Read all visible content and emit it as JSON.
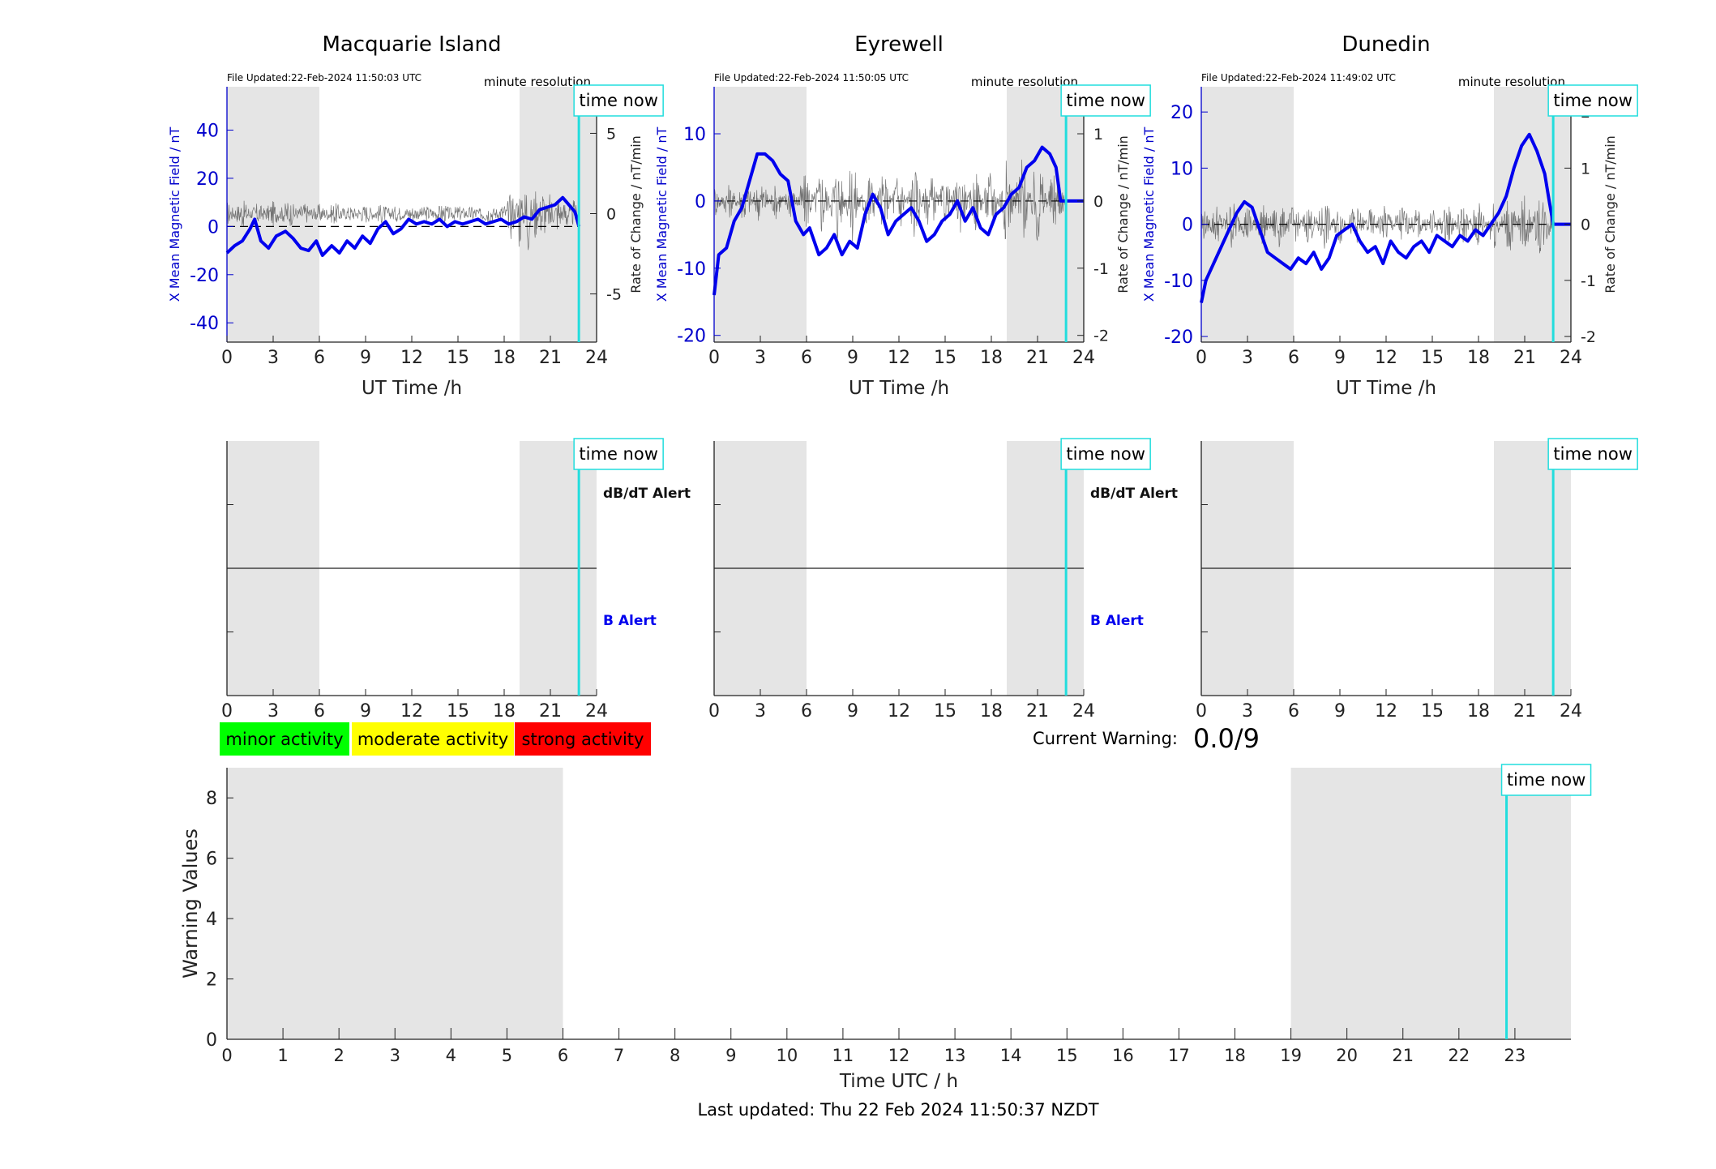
{
  "page": {
    "current_warning_label": "Current Warning:",
    "current_warning_value": "0.0/9",
    "last_updated": "Last updated: Thu 22 Feb 2024 11:50:37 NZDT",
    "time_now_label": "time now",
    "minute_resolution": "minute resolution",
    "legend": [
      {
        "label": "minor activity",
        "color": "#00ff00"
      },
      {
        "label": "moderate activity",
        "color": "#ffff00"
      },
      {
        "label": "strong activity",
        "color": "#ff0000"
      }
    ],
    "colors": {
      "field": "#0000ee",
      "rate": "#555555",
      "time_now": "#22dddd",
      "night": "#e5e5e5",
      "b_alert": "#0000ee"
    }
  },
  "chart_data": [
    {
      "type": "line",
      "title": "Macquarie Island",
      "file_updated": "File Updated:22-Feb-2024 11:50:03 UTC",
      "xlabel": "UT Time /h",
      "ylabel": "X Mean Magnetic Field / nT",
      "y2label": "Rate of Change / nT/min",
      "xlim": [
        0,
        24
      ],
      "ylim": [
        -48,
        58
      ],
      "y2lim": [
        -8,
        7.9
      ],
      "xticks": [
        "0",
        "3",
        "6",
        "9",
        "12",
        "15",
        "18",
        "21",
        "24"
      ],
      "yticks": [
        "-40",
        "-20",
        "0",
        "20",
        "40"
      ],
      "y2ticks": [
        "-5",
        "0",
        "5"
      ],
      "night_bands": [
        [
          0,
          6
        ],
        [
          19,
          24
        ]
      ],
      "time_now": 22.85,
      "series": [
        {
          "role": "field",
          "x": [
            0,
            0.5,
            1,
            1.5,
            1.8,
            2.2,
            2.7,
            3.2,
            3.8,
            4.3,
            4.8,
            5.3,
            5.8,
            6.2,
            6.8,
            7.3,
            7.8,
            8.3,
            8.8,
            9.3,
            9.8,
            10.3,
            10.8,
            11.3,
            11.8,
            12.3,
            12.8,
            13.3,
            13.8,
            14.3,
            14.8,
            15.3,
            15.8,
            16.3,
            16.8,
            17.3,
            17.8,
            18.3,
            18.8,
            19.3,
            19.8,
            20.3,
            20.8,
            21.3,
            21.8,
            22.2,
            22.6,
            22.85
          ],
          "y": [
            -11,
            -8,
            -6,
            -1,
            3,
            -6,
            -9,
            -4,
            -2,
            -5,
            -9,
            -10,
            -6,
            -12,
            -8,
            -11,
            -6,
            -9,
            -4,
            -7,
            -1,
            2,
            -3,
            -1,
            3,
            1,
            2,
            1,
            3,
            0,
            2,
            1,
            2,
            3,
            1,
            2,
            3,
            1,
            2,
            4,
            3,
            7,
            8,
            9,
            12,
            9,
            6,
            0
          ]
        },
        {
          "role": "rate",
          "x": [
            0,
            1,
            2,
            3,
            4,
            5,
            6,
            7,
            8,
            9,
            10,
            11,
            12,
            13,
            14,
            15,
            16,
            17,
            18,
            18.5,
            19,
            19.5,
            20,
            20.5,
            21,
            21.5,
            22,
            22.5,
            22.85
          ],
          "y": [
            0.5,
            -0.6,
            0.4,
            -0.5,
            0.6,
            -0.4,
            0.3,
            -0.4,
            0.2,
            -0.3,
            0.3,
            -0.2,
            0.2,
            -0.2,
            0.3,
            -0.2,
            0.2,
            -0.3,
            0.4,
            -1.5,
            2.2,
            -2.8,
            1.6,
            -1.8,
            1.2,
            -1.1,
            0.9,
            -0.6,
            0
          ]
        }
      ]
    },
    {
      "type": "line",
      "title": "Eyrewell",
      "file_updated": "File Updated:22-Feb-2024 11:50:05 UTC",
      "xlabel": "UT Time /h",
      "ylabel": "X Mean Magnetic Field / nT",
      "y2label": "Rate of Change / nT/min",
      "xlim": [
        0,
        24
      ],
      "ylim": [
        -21,
        17
      ],
      "y2lim": [
        -2.1,
        1.7
      ],
      "xticks": [
        "0",
        "3",
        "6",
        "9",
        "12",
        "15",
        "18",
        "21",
        "24"
      ],
      "yticks": [
        "-20",
        "-10",
        "0",
        "10"
      ],
      "y2ticks": [
        "-2",
        "-1",
        "0",
        "1"
      ],
      "night_bands": [
        [
          0,
          6
        ],
        [
          19,
          24
        ]
      ],
      "time_now": 22.85,
      "series": [
        {
          "role": "field",
          "x": [
            0,
            0.3,
            0.8,
            1.3,
            1.8,
            2.3,
            2.8,
            3.3,
            3.8,
            4.3,
            4.8,
            5.3,
            5.8,
            6.2,
            6.8,
            7.3,
            7.8,
            8.3,
            8.8,
            9.3,
            9.8,
            10.3,
            10.8,
            11.3,
            11.8,
            12.3,
            12.8,
            13.3,
            13.8,
            14.3,
            14.8,
            15.3,
            15.8,
            16.3,
            16.8,
            17.3,
            17.8,
            18.3,
            18.8,
            19.3,
            19.8,
            20.3,
            20.8,
            21.3,
            21.8,
            22.2,
            22.5,
            22.85,
            24
          ],
          "y": [
            -14,
            -8,
            -7,
            -3,
            -1,
            3,
            7,
            7,
            6,
            4,
            3,
            -3,
            -5,
            -4,
            -8,
            -7,
            -5,
            -8,
            -6,
            -7,
            -2,
            1,
            -1,
            -5,
            -3,
            -2,
            -1,
            -3,
            -6,
            -5,
            -3,
            -2,
            0,
            -3,
            -1,
            -4,
            -5,
            -2,
            -1,
            1,
            2,
            5,
            6,
            8,
            7,
            5,
            0,
            0,
            0
          ]
        },
        {
          "role": "rate",
          "x": [
            0,
            1,
            2,
            3,
            4,
            5,
            6,
            7,
            8,
            9,
            10,
            11,
            12,
            13,
            14,
            15,
            16,
            17,
            18,
            19,
            20,
            21,
            22,
            22.85
          ],
          "y": [
            0.2,
            -0.2,
            0.3,
            -0.3,
            0.2,
            -0.2,
            0.4,
            -0.5,
            0.6,
            -0.6,
            0.5,
            -0.4,
            0.5,
            -0.5,
            0.4,
            -0.3,
            0.4,
            -0.4,
            0.5,
            -0.6,
            0.7,
            -0.7,
            0.4,
            0
          ]
        }
      ]
    },
    {
      "type": "line",
      "title": "Dunedin",
      "file_updated": "File Updated:22-Feb-2024 11:49:02 UTC",
      "xlabel": "UT Time /h",
      "ylabel": "X Mean Magnetic Field / nT",
      "y2label": "Rate of Change / nT/min",
      "xlim": [
        0,
        24
      ],
      "ylim": [
        -21,
        24.5
      ],
      "y2lim": [
        -2.1,
        2.45
      ],
      "xticks": [
        "0",
        "3",
        "6",
        "9",
        "12",
        "15",
        "18",
        "21",
        "24"
      ],
      "yticks": [
        "-20",
        "-10",
        "0",
        "10",
        "20"
      ],
      "y2ticks": [
        "-2",
        "-1",
        "0",
        "1",
        "2"
      ],
      "night_bands": [
        [
          0,
          6
        ],
        [
          19,
          24
        ]
      ],
      "time_now": 22.85,
      "series": [
        {
          "role": "field",
          "x": [
            0,
            0.3,
            0.8,
            1.3,
            1.8,
            2.3,
            2.8,
            3.3,
            3.8,
            4.3,
            4.8,
            5.3,
            5.8,
            6.3,
            6.8,
            7.3,
            7.8,
            8.3,
            8.8,
            9.3,
            9.8,
            10.3,
            10.8,
            11.3,
            11.8,
            12.3,
            12.8,
            13.3,
            13.8,
            14.3,
            14.8,
            15.3,
            15.8,
            16.3,
            16.8,
            17.3,
            17.8,
            18.3,
            18.8,
            19.3,
            19.8,
            20.3,
            20.8,
            21.3,
            21.8,
            22.3,
            22.6,
            22.85,
            24
          ],
          "y": [
            -14,
            -10,
            -7,
            -4,
            -1,
            2,
            4,
            3,
            -1,
            -5,
            -6,
            -7,
            -8,
            -6,
            -7,
            -5,
            -8,
            -6,
            -2,
            -1,
            0,
            -3,
            -5,
            -4,
            -7,
            -3,
            -5,
            -6,
            -4,
            -3,
            -5,
            -2,
            -3,
            -4,
            -2,
            -3,
            -1,
            -2,
            0,
            2,
            5,
            10,
            14,
            16,
            13,
            9,
            4,
            0,
            0
          ]
        },
        {
          "role": "rate",
          "x": [
            0,
            1,
            2,
            3,
            4,
            5,
            6,
            7,
            8,
            9,
            10,
            11,
            12,
            13,
            14,
            15,
            16,
            17,
            18,
            19,
            20,
            21,
            22,
            22.85
          ],
          "y": [
            0.3,
            -0.3,
            0.4,
            -0.3,
            0.3,
            -0.4,
            0.3,
            -0.3,
            0.4,
            -0.3,
            0.3,
            -0.2,
            0.3,
            -0.3,
            0.2,
            -0.2,
            0.3,
            -0.3,
            0.4,
            -0.4,
            0.5,
            -0.5,
            0.5,
            0
          ]
        }
      ]
    },
    {
      "type": "line",
      "title": "",
      "alert_top": "dB/dT Alert",
      "alert_bottom": "B Alert",
      "xlim": [
        0,
        24
      ],
      "xticks": [
        "0",
        "3",
        "6",
        "9",
        "12",
        "15",
        "18",
        "21",
        "24"
      ],
      "night_bands": [
        [
          0,
          6
        ],
        [
          19,
          24
        ]
      ],
      "time_now": 22.85,
      "series": []
    },
    {
      "type": "line",
      "title": "",
      "alert_top": "dB/dT Alert",
      "alert_bottom": "B Alert",
      "xlim": [
        0,
        24
      ],
      "xticks": [
        "0",
        "3",
        "6",
        "9",
        "12",
        "15",
        "18",
        "21",
        "24"
      ],
      "night_bands": [
        [
          0,
          6
        ],
        [
          19,
          24
        ]
      ],
      "time_now": 22.85,
      "series": []
    },
    {
      "type": "line",
      "title": "",
      "alert_top": "",
      "alert_bottom": "",
      "xlim": [
        0,
        24
      ],
      "xticks": [
        "0",
        "3",
        "6",
        "9",
        "12",
        "15",
        "18",
        "21",
        "24"
      ],
      "night_bands": [
        [
          0,
          6
        ],
        [
          19,
          24
        ]
      ],
      "time_now": 22.85,
      "series": []
    },
    {
      "type": "bar",
      "title": "",
      "xlabel": "Time UTC / h",
      "ylabel": "Warning Values",
      "xlim": [
        0,
        24
      ],
      "ylim": [
        0,
        9
      ],
      "xticks": [
        "0",
        "1",
        "2",
        "3",
        "4",
        "5",
        "6",
        "7",
        "8",
        "9",
        "10",
        "11",
        "12",
        "13",
        "14",
        "15",
        "16",
        "17",
        "18",
        "19",
        "20",
        "21",
        "22",
        "23"
      ],
      "yticks": [
        "0",
        "2",
        "4",
        "6",
        "8"
      ],
      "night_bands": [
        [
          0,
          6
        ],
        [
          19,
          24
        ]
      ],
      "time_now": 22.85,
      "series": []
    }
  ]
}
